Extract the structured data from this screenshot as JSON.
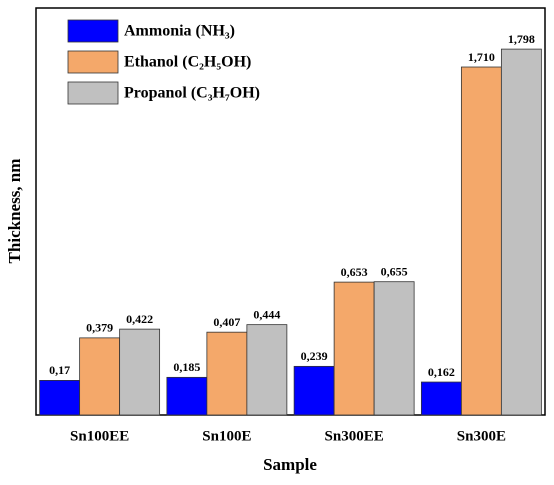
{
  "chart_data": {
    "type": "bar",
    "x_label": "Sample",
    "y_label": "Thickness, nm",
    "categories": [
      "Sn100EE",
      "Sn100E",
      "Sn300EE",
      "Sn300E"
    ],
    "series": [
      {
        "name": "Ammonia (NH₃)",
        "color": "#0000ff",
        "values": [
          0.17,
          0.185,
          0.239,
          0.162
        ],
        "value_labels": [
          "0,17",
          "0,185",
          "0,239",
          "0,162"
        ]
      },
      {
        "name": "Ethanol (C₂H₅OH)",
        "color": "#f4a86a",
        "values": [
          0.379,
          0.407,
          0.653,
          1.71
        ],
        "value_labels": [
          "0,379",
          "0,407",
          "0,653",
          "1,710"
        ]
      },
      {
        "name": "Propanol (C₃H₇OH)",
        "color": "#c0c0c0",
        "values": [
          0.422,
          0.444,
          0.655,
          1.798
        ],
        "value_labels": [
          "0,422",
          "0,444",
          "0,655",
          "1,798"
        ]
      }
    ],
    "ylim": [
      0,
      2.0
    ],
    "legend": "upper left"
  }
}
